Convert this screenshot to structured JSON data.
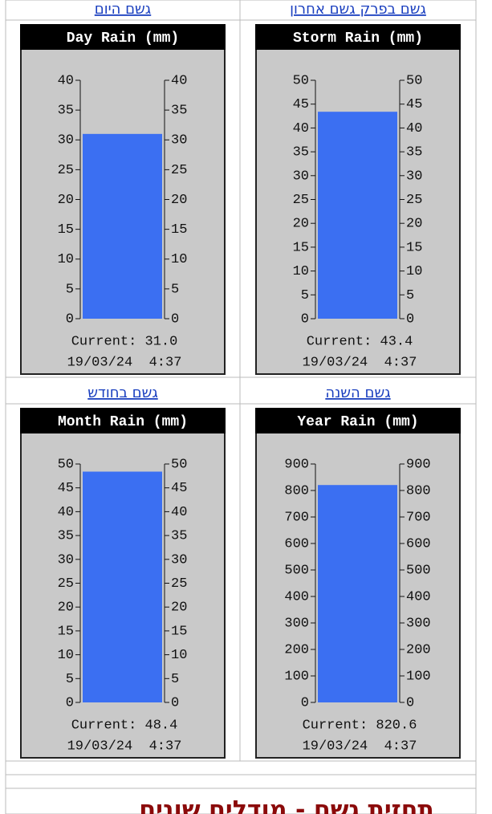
{
  "chart_data": [
    {
      "type": "bar",
      "title": "Day Rain (mm)",
      "values": [
        31.0
      ],
      "value_labels": [
        "Current: 31.0"
      ],
      "timestamp": "19/03/24  4:37",
      "color": "#3b6ff2",
      "ylim": [
        0,
        40
      ],
      "yticks": [
        0,
        5,
        10,
        15,
        20,
        25,
        30,
        35,
        40
      ]
    },
    {
      "type": "bar",
      "title": "Storm Rain (mm)",
      "values": [
        43.4
      ],
      "value_labels": [
        "Current: 43.4"
      ],
      "timestamp": "19/03/24  4:37",
      "color": "#3b6ff2",
      "ylim": [
        0,
        50
      ],
      "yticks": [
        0,
        5,
        10,
        15,
        20,
        25,
        30,
        35,
        40,
        45,
        50
      ]
    },
    {
      "type": "bar",
      "title": "Month Rain (mm)",
      "values": [
        48.4
      ],
      "value_labels": [
        "Current: 48.4"
      ],
      "timestamp": "19/03/24  4:37",
      "color": "#3b6ff2",
      "ylim": [
        0,
        50
      ],
      "yticks": [
        0,
        5,
        10,
        15,
        20,
        25,
        30,
        35,
        40,
        45,
        50
      ]
    },
    {
      "type": "bar",
      "title": "Year Rain (mm)",
      "values": [
        820.6
      ],
      "value_labels": [
        "Current: 820.6"
      ],
      "timestamp": "19/03/24  4:37",
      "color": "#3b6ff2",
      "ylim": [
        0,
        900
      ],
      "yticks": [
        0,
        100,
        200,
        300,
        400,
        500,
        600,
        700,
        800,
        900
      ]
    }
  ],
  "links": [
    "גשם היום",
    "גשם בפרק גשם אחרון",
    "גשם בחודש",
    "גשם השנה"
  ],
  "heading": "תחזית גשם - מודלים שונים"
}
